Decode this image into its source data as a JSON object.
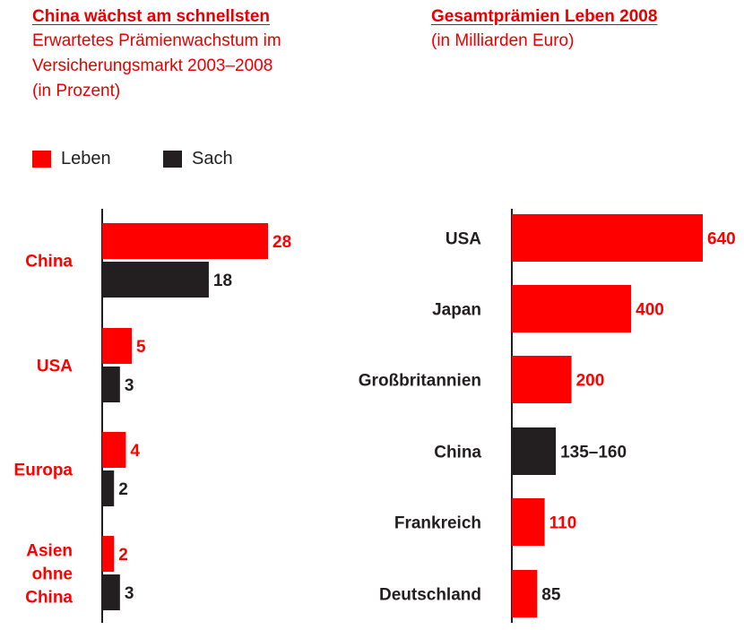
{
  "colors": {
    "red": "#ff0000",
    "dark": "#231f20",
    "heading_red": "#e60000"
  },
  "left_panel": {
    "title": "China wächst am schnellsten",
    "subtitle_lines": [
      "Erwartetes Prämienwachstum im",
      "Versicherungsmarkt 2003–2008",
      "(in Prozent)"
    ],
    "legend": [
      {
        "label": "Leben",
        "color": "#ff0000"
      },
      {
        "label": "Sach",
        "color": "#231f20"
      }
    ]
  },
  "right_panel": {
    "title": "Gesamtprämien Leben 2008",
    "subtitle_lines": [
      "(in Milliarden Euro)"
    ]
  },
  "chart_data": [
    {
      "type": "bar",
      "orientation": "horizontal",
      "title": "China wächst am schnellsten",
      "subtitle": "Erwartetes Prämienwachstum im Versicherungsmarkt 2003–2008 (in Prozent)",
      "categories": [
        "China",
        "USA",
        "Europa",
        "Asien ohne China"
      ],
      "category_labels": [
        [
          "China"
        ],
        [
          "USA"
        ],
        [
          "Europa"
        ],
        [
          "Asien",
          "ohne",
          "China"
        ]
      ],
      "series": [
        {
          "name": "Leben",
          "color": "#ff0000",
          "values": [
            28,
            5,
            4,
            2
          ],
          "labels": [
            "28",
            "5",
            "4",
            "2"
          ]
        },
        {
          "name": "Sach",
          "color": "#231f20",
          "values": [
            18,
            3,
            2,
            3
          ],
          "labels": [
            "18",
            "3",
            "2",
            "3"
          ]
        }
      ],
      "xlim": [
        0,
        28
      ],
      "grid": false,
      "legend_position": "top-left"
    },
    {
      "type": "bar",
      "orientation": "horizontal",
      "title": "Gesamtprämien Leben 2008",
      "subtitle": "(in Milliarden Euro)",
      "categories": [
        "USA",
        "Japan",
        "Großbritannien",
        "China",
        "Frankreich",
        "Deutschland"
      ],
      "values": [
        640,
        400,
        200,
        147.5,
        110,
        85
      ],
      "value_labels": [
        "640",
        "400",
        "200",
        "135–160",
        "110",
        "85"
      ],
      "bar_colors": [
        "#ff0000",
        "#ff0000",
        "#ff0000",
        "#231f20",
        "#ff0000",
        "#ff0000"
      ],
      "label_colors": [
        "#ff0000",
        "#ff0000",
        "#ff0000",
        "#231f20",
        "#ff0000",
        "#231f20"
      ],
      "xlim": [
        0,
        640
      ],
      "grid": false
    }
  ]
}
